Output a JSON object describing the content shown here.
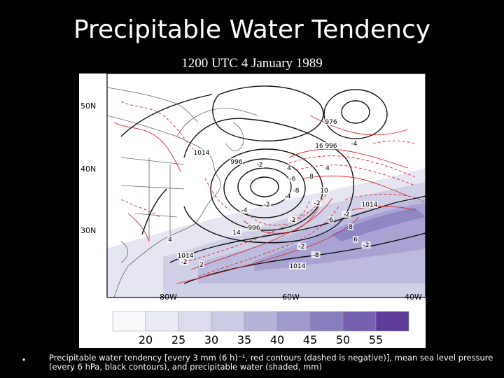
{
  "slide": {
    "title": "Precipitable Water Tendency",
    "subtitle": "1200 UTC 4 January 1989",
    "bullet": "•",
    "caption": "Precipitable water tendency [every 3 mm (6 h)⁻¹, red contours (dashed is negative)], mean sea level pressure (every 6 hPa, black contours), and precipitable water (shaded, mm)"
  },
  "map": {
    "lat_labels": [
      "50N",
      "40N",
      "30N"
    ],
    "lon_labels": [
      "80W",
      "60W",
      "40W"
    ],
    "contour_labels": [
      "976",
      "16",
      "996",
      "-4",
      "1014",
      "996",
      "-2",
      "4",
      "-6",
      "-8",
      "-4",
      "-2",
      "996",
      "-2",
      "-2",
      "14",
      "4",
      "1014",
      "2",
      "6",
      "-2",
      "8",
      "-2",
      "1014",
      "-2",
      "-8",
      "1014",
      "-2",
      "-4",
      "4",
      "8",
      "10",
      "6"
    ]
  },
  "colorbar": {
    "ticks": [
      "20",
      "25",
      "30",
      "35",
      "40",
      "45",
      "50",
      "55"
    ],
    "colors": [
      "#f9f9fc",
      "#ebebf5",
      "#dcdcee",
      "#cbcbe5",
      "#b5b3d9",
      "#9f9acb",
      "#8a7fbe",
      "#7660b0",
      "#5e3c9a"
    ]
  }
}
